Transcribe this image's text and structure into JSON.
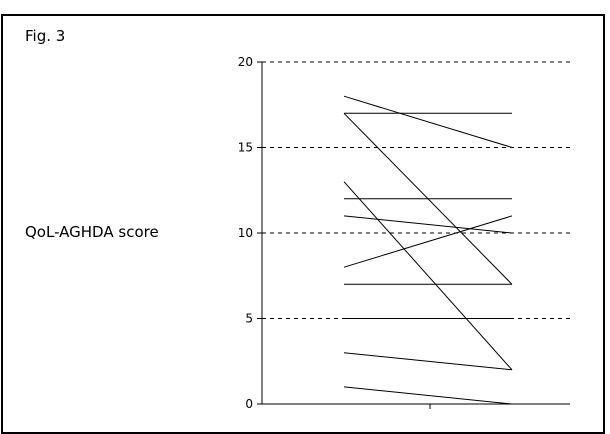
{
  "figure": {
    "label": "Fig. 3"
  },
  "chart_data": {
    "type": "line",
    "title": "",
    "xlabel": "",
    "ylabel": "QoL-AGHDA score",
    "ylim": [
      0,
      20
    ],
    "yticks": [
      0,
      5,
      10,
      15,
      20
    ],
    "x": [
      1,
      2
    ],
    "grid": true,
    "grid_style": "dashed",
    "line_color": "#000000",
    "series": [
      {
        "values": [
          18,
          15
        ]
      },
      {
        "values": [
          17,
          17
        ]
      },
      {
        "values": [
          17,
          7
        ]
      },
      {
        "values": [
          13,
          2
        ]
      },
      {
        "values": [
          12,
          12
        ]
      },
      {
        "values": [
          11,
          10
        ]
      },
      {
        "values": [
          8,
          11
        ]
      },
      {
        "values": [
          7,
          7
        ]
      },
      {
        "values": [
          5,
          5
        ]
      },
      {
        "values": [
          3,
          2
        ]
      },
      {
        "values": [
          1,
          0
        ]
      }
    ]
  }
}
